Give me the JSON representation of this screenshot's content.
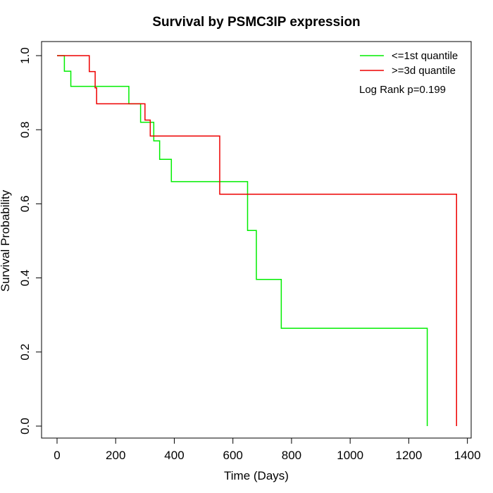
{
  "chart_data": {
    "type": "line",
    "subtype": "kaplan-meier step",
    "title": "Survival by PSMC3IP expression",
    "xlabel": "Time (Days)",
    "ylabel": "Survival Probability",
    "xlim": [
      0,
      1400
    ],
    "ylim": [
      0,
      1
    ],
    "x_ticks": [
      0,
      200,
      400,
      600,
      800,
      1000,
      1200,
      1400
    ],
    "y_ticks": [
      0.0,
      0.2,
      0.4,
      0.6,
      0.8,
      1.0
    ],
    "x_tick_labels": [
      "0",
      "200",
      "400",
      "600",
      "800",
      "1000",
      "1200",
      "1400"
    ],
    "y_tick_labels": [
      "0.0",
      "0.2",
      "0.4",
      "0.6",
      "0.8",
      "1.0"
    ],
    "grid": false,
    "legend_position": "top-right",
    "annotation": "Log Rank p=0.199",
    "series": [
      {
        "name": "<=1st quantile",
        "color": "#00ee00",
        "points": [
          [
            0,
            1.0
          ],
          [
            25,
            0.958
          ],
          [
            47,
            0.917
          ],
          [
            245,
            0.87
          ],
          [
            285,
            0.82
          ],
          [
            330,
            0.77
          ],
          [
            350,
            0.72
          ],
          [
            390,
            0.66
          ],
          [
            650,
            0.528
          ],
          [
            680,
            0.396
          ],
          [
            765,
            0.264
          ],
          [
            1263,
            0.0
          ]
        ]
      },
      {
        "name": ">=3d quantile",
        "color": "#ee0000",
        "points": [
          [
            0,
            1.0
          ],
          [
            110,
            0.957
          ],
          [
            130,
            0.913
          ],
          [
            135,
            0.87
          ],
          [
            300,
            0.826
          ],
          [
            318,
            0.783
          ],
          [
            555,
            0.626
          ],
          [
            1363,
            0.0
          ]
        ]
      }
    ]
  }
}
